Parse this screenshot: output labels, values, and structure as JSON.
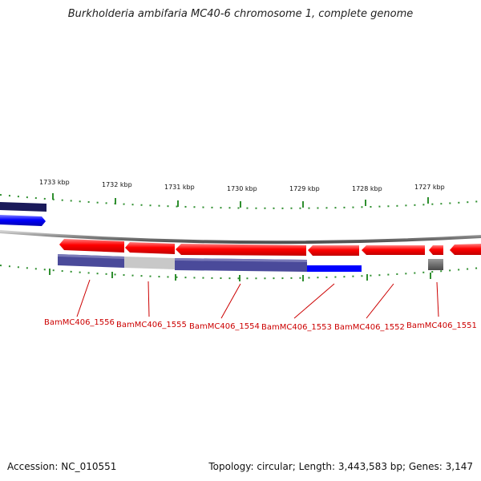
{
  "title": "Burkholderia ambifaria MC40-6 chromosome 1, complete genome",
  "footer": {
    "accession": "Accession: NC_010551",
    "stats": "Topology: circular; Length: 3,443,583 bp; Genes: 3,147"
  },
  "scale_labels": [
    "1733 kbp",
    "1732 kbp",
    "1731 kbp",
    "1730 kbp",
    "1729 kbp",
    "1728 kbp",
    "1727 kbp"
  ],
  "genes": [
    {
      "label": "BamMC406_1556",
      "color": "#ff0000",
      "strand": "reverse"
    },
    {
      "label": "BamMC406_1555",
      "color": "#ff0000",
      "strand": "reverse"
    },
    {
      "label": "BamMC406_1554",
      "color": "#ff0000",
      "strand": "reverse"
    },
    {
      "label": "BamMC406_1553",
      "color": "#ff0000",
      "strand": "reverse"
    },
    {
      "label": "BamMC406_1552",
      "color": "#ff0000",
      "strand": "reverse"
    },
    {
      "label": "BamMC406_1551",
      "color": "#ff0000",
      "strand": "reverse"
    }
  ],
  "colors": {
    "forward_gene": "#0000ff",
    "reverse_gene": "#ff0000",
    "backbone": "#808080",
    "scale_ticks": "#2f8f2f",
    "gene_labels": "#cc0000",
    "homology_dark": "#4a4a9a",
    "homology_light": "#c8c8c8",
    "homology_navy": "#1a1a5a"
  }
}
